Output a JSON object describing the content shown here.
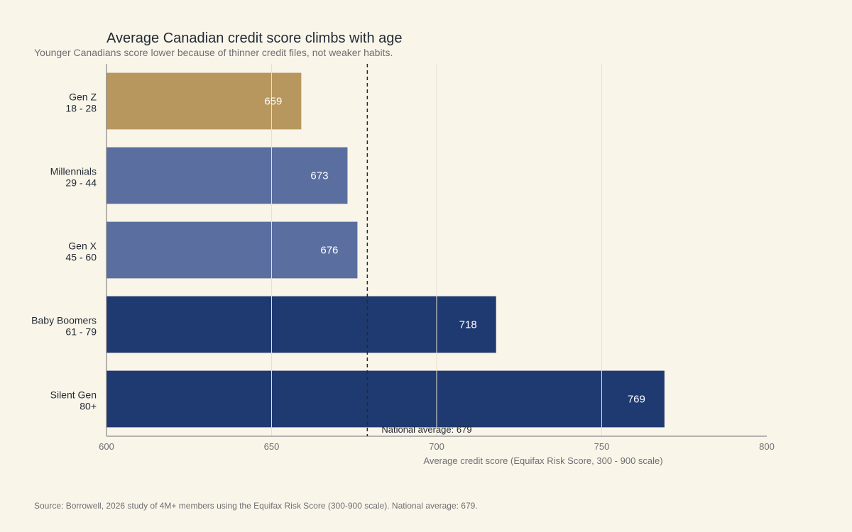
{
  "chart_data": {
    "type": "bar",
    "orientation": "horizontal",
    "title": "Average Canadian credit score climbs with age",
    "subtitle": "Younger Canadians score lower because of thinner credit files, not weaker habits.",
    "categories": [
      [
        "Gen Z",
        "18 - 28"
      ],
      [
        "Millennials",
        "29 - 44"
      ],
      [
        "Gen X",
        "45 - 60"
      ],
      [
        "Baby Boomers",
        "61 - 79"
      ],
      [
        "Silent Gen",
        "80+"
      ]
    ],
    "values": [
      659,
      673,
      676,
      718,
      769
    ],
    "bar_colors": [
      "#b8975f",
      "#5a6fa0",
      "#5a6fa0",
      "#1f3a70",
      "#1f3a70"
    ],
    "xlabel": "Average credit score (Equifax Risk Score, 300 - 900 scale)",
    "ylabel": "",
    "xlim": [
      600,
      800
    ],
    "xticks": [
      600,
      650,
      700,
      750,
      800
    ],
    "grid": "vertical",
    "reference_line": {
      "value": 679,
      "label": "National average: 679",
      "style": "dashed",
      "color": "#222b36"
    },
    "source": "Source: Borrowell, 2026 study of 4M+ members using the Equifax Risk Score (300-900 scale). National average: 679."
  }
}
